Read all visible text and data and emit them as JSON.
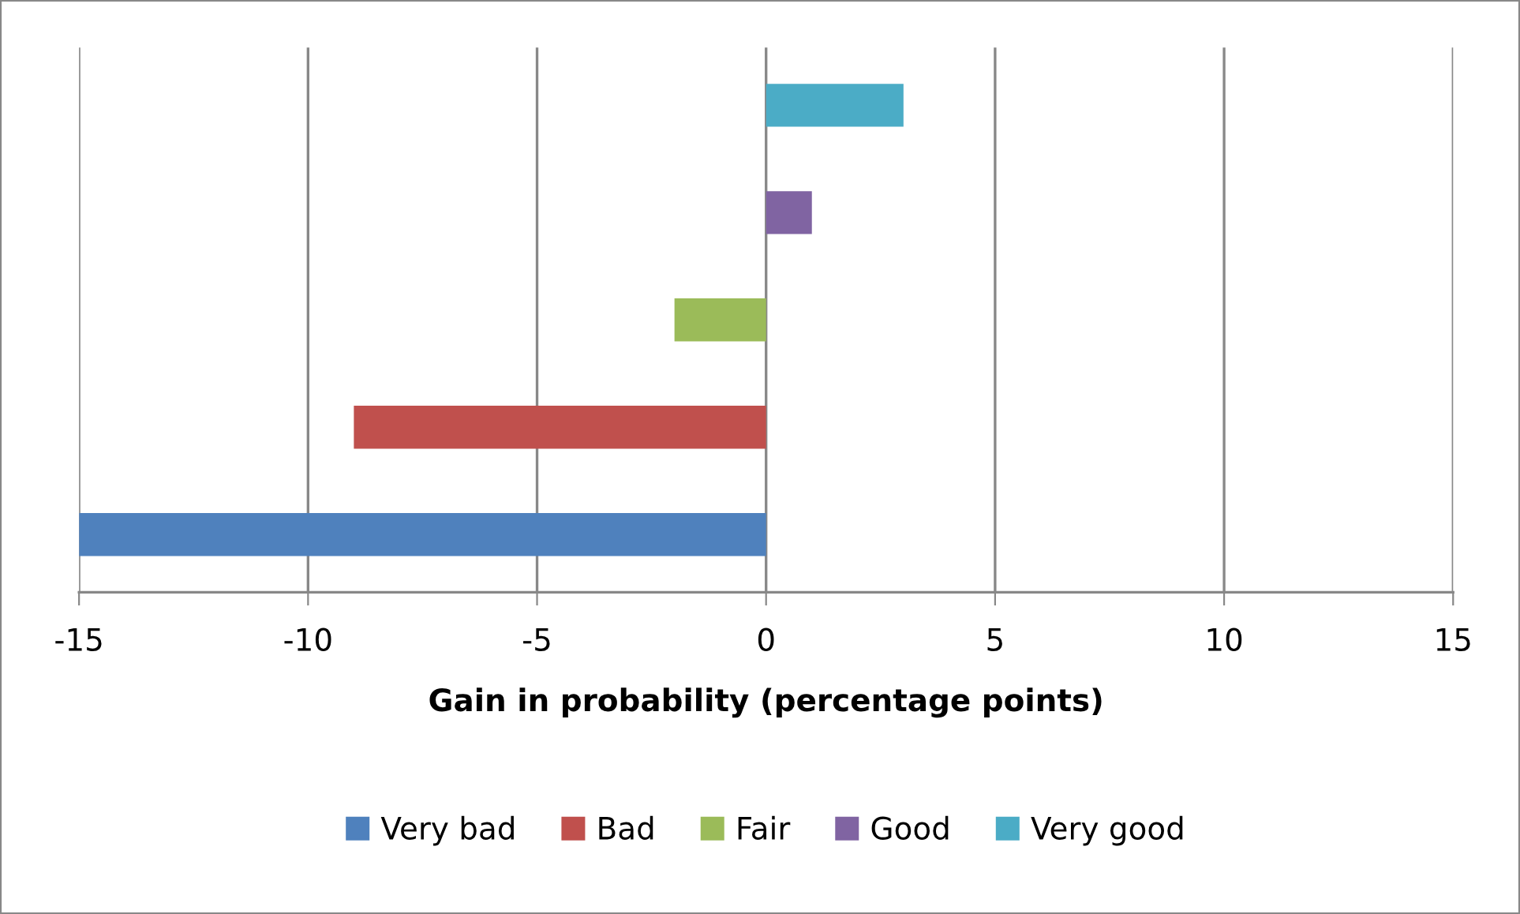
{
  "chart_data": {
    "type": "bar",
    "orientation": "horizontal",
    "categories": [
      null
    ],
    "series": [
      {
        "name": "Very bad",
        "color": "#4f81bd",
        "values": [
          -15
        ]
      },
      {
        "name": "Bad",
        "color": "#c0504d",
        "values": [
          -9
        ]
      },
      {
        "name": "Fair",
        "color": "#9bbb59",
        "values": [
          -2
        ]
      },
      {
        "name": "Good",
        "color": "#8064a2",
        "values": [
          1
        ]
      },
      {
        "name": "Very good",
        "color": "#4bacc6",
        "values": [
          3
        ]
      }
    ],
    "xlabel": "Gain in probability (percentage points)",
    "xlim": [
      -15,
      15
    ],
    "xticks": [
      -15,
      -10,
      -5,
      0,
      5,
      10,
      15
    ],
    "grid": "x",
    "legend": "bottom",
    "tick_labels": "x"
  }
}
